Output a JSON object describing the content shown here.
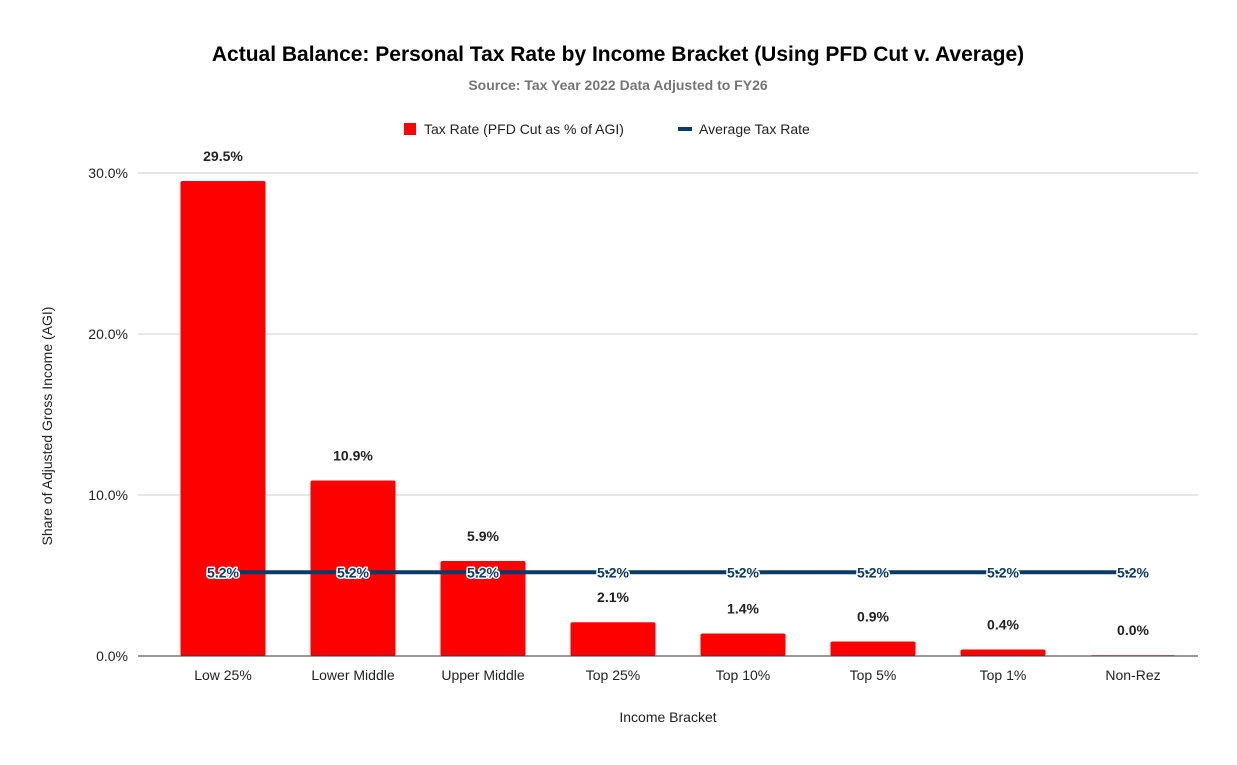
{
  "chart_data": {
    "type": "bar",
    "title": "Actual Balance: Personal Tax Rate by Income Bracket (Using PFD Cut v. Average)",
    "subtitle": "Source: Tax Year 2022 Data Adjusted to FY26",
    "xlabel": "Income Bracket",
    "ylabel": "Share of Adjusted Gross Income (AGI)",
    "categories": [
      "Low 25%",
      "Lower Middle",
      "Upper Middle",
      "Top 25%",
      "Top 10%",
      "Top 5%",
      "Top 1%",
      "Non-Rez"
    ],
    "ylim": [
      0,
      30
    ],
    "yticks": [
      {
        "value": 0,
        "label": "0.0%"
      },
      {
        "value": 10,
        "label": "10.0%"
      },
      {
        "value": 20,
        "label": "20.0%"
      },
      {
        "value": 30,
        "label": "30.0%"
      }
    ],
    "grid": true,
    "legend_position": "top",
    "series": [
      {
        "name": "Tax Rate (PFD Cut as % of AGI)",
        "kind": "bar",
        "color": "#ff0000",
        "values": [
          29.5,
          10.9,
          5.9,
          2.1,
          1.4,
          0.9,
          0.4,
          0.0
        ],
        "labels": [
          "29.5%",
          "10.9%",
          "5.9%",
          "2.1%",
          "1.4%",
          "0.9%",
          "0.4%",
          "0.0%"
        ]
      },
      {
        "name": "Average Tax Rate",
        "kind": "line",
        "color": "#0b3a66",
        "values": [
          5.2,
          5.2,
          5.2,
          5.2,
          5.2,
          5.2,
          5.2,
          5.2
        ],
        "labels": [
          "5.2%",
          "5.2%",
          "5.2%",
          "5.2%",
          "5.2%",
          "5.2%",
          "5.2%",
          "5.2%"
        ]
      }
    ]
  }
}
